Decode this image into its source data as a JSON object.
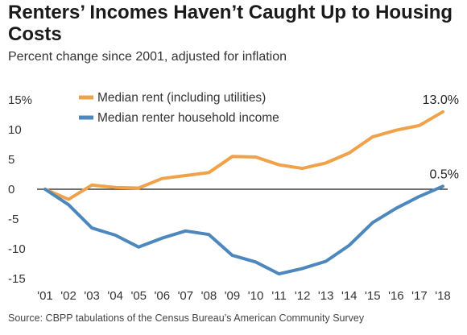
{
  "title": "Renters’ Incomes Haven’t Caught Up to Housing Costs",
  "subtitle": "Percent change since 2001, adjusted for inflation",
  "source": "Source: CBPP tabulations of the Census Bureau’s American Community Survey",
  "chart_data": {
    "type": "line",
    "x": [
      "'01",
      "'02",
      "'03",
      "'04",
      "'05",
      "'06",
      "'07",
      "'08",
      "'09",
      "'10",
      "'11",
      "'12",
      "'13",
      "'14",
      "'15",
      "'16",
      "'17",
      "'18"
    ],
    "ylim": [
      -15,
      15
    ],
    "yticks": [
      15,
      10,
      5,
      0,
      -5,
      -10,
      -15
    ],
    "ytick_labels": [
      "15%",
      "10",
      "5",
      "0",
      "-5",
      "-10",
      "-15"
    ],
    "grid": false,
    "zero_line": true,
    "legend_placement": "top-left",
    "series": [
      {
        "name": "Median rent (including utilities)",
        "color": "#f0a24a",
        "values": [
          0,
          -1.7,
          0.7,
          0.3,
          0.2,
          1.8,
          2.3,
          2.8,
          5.5,
          5.4,
          4.1,
          3.5,
          4.4,
          6.1,
          8.8,
          9.9,
          10.7,
          13.0
        ],
        "end_label": "13.0%"
      },
      {
        "name": "Median renter household income",
        "color": "#4c87bd",
        "values": [
          0,
          -2.6,
          -6.5,
          -7.7,
          -9.7,
          -8.2,
          -7.0,
          -7.6,
          -11.1,
          -12.2,
          -14.2,
          -13.3,
          -12.1,
          -9.4,
          -5.6,
          -3.2,
          -1.2,
          0.5
        ],
        "end_label": "0.5%"
      }
    ]
  }
}
